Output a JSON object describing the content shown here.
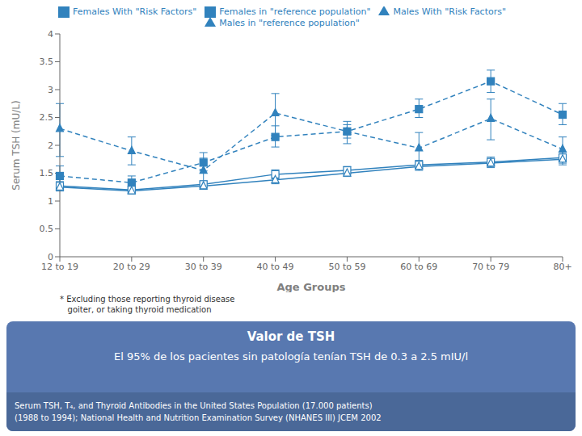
{
  "chart_data": {
    "type": "line",
    "title": "Valor de TSH",
    "subtitle": "El 95% de los pacientes sin patología tenían TSH de 0.3 a 2.5 mIU/l",
    "categories": [
      "12 to 19",
      "20 to 29",
      "30 to 39",
      "40 to 49",
      "50 to 59",
      "60 to 69",
      "70 to 79",
      "80+"
    ],
    "series": [
      {
        "name": "Females With \"Risk Factors\"",
        "values": [
          1.45,
          1.33,
          1.69,
          2.15,
          2.25,
          2.65,
          3.15,
          2.55
        ],
        "error_low": [
          0.15,
          0.1,
          0.15,
          0.18,
          0.12,
          0.15,
          0.2,
          0.18
        ],
        "error_high": [
          0.18,
          0.12,
          0.18,
          0.2,
          0.12,
          0.18,
          0.2,
          0.2
        ],
        "line_style": "dashed",
        "marker": "filled_square"
      },
      {
        "name": "Males With \"Risk Factors\"",
        "values": [
          2.3,
          1.9,
          1.55,
          2.58,
          2.25,
          1.95,
          2.48,
          1.93
        ],
        "error_low": [
          0.5,
          0.25,
          0.28,
          0.4,
          0.22,
          0.28,
          0.38,
          0.22
        ],
        "error_high": [
          0.45,
          0.25,
          0.22,
          0.35,
          0.18,
          0.28,
          0.35,
          0.22
        ],
        "line_style": "dashed",
        "marker": "filled_triangle"
      },
      {
        "name": "Females in \"reference population\"",
        "values": [
          1.27,
          1.2,
          1.3,
          1.48,
          1.55,
          1.65,
          1.7,
          1.78
        ],
        "error_low": [
          0.08,
          0.06,
          0.06,
          0.08,
          0.07,
          0.07,
          0.08,
          0.1
        ],
        "error_high": [
          0.08,
          0.06,
          0.06,
          0.08,
          0.07,
          0.08,
          0.09,
          0.1
        ],
        "line_style": "solid",
        "marker": "open_square"
      },
      {
        "name": "Males in \"reference population\"",
        "values": [
          1.25,
          1.18,
          1.27,
          1.38,
          1.5,
          1.62,
          1.68,
          1.75
        ],
        "error_low": [
          0.07,
          0.05,
          0.06,
          0.07,
          0.06,
          0.07,
          0.08,
          0.1
        ],
        "error_high": [
          0.07,
          0.05,
          0.06,
          0.07,
          0.06,
          0.07,
          0.08,
          0.1
        ],
        "line_style": "solid",
        "marker": "open_triangle"
      }
    ],
    "ylabel": "Serum TSH (mU/L)",
    "xlabel": "Age Groups",
    "annotations": [
      "* Excluding those reporting thyroid disease\n   goiter, or taking thyroid medication",
      "Serum TSH, T₄, and Thyroid Antibodies in the United States Population (17.000 patients)\n(1988 to 1994); National Health and Nutrition Examination Survey (NHANES III) JCEM 2002"
    ],
    "ylim": [
      0,
      4
    ],
    "yticks": [
      0,
      0.5,
      1,
      1.5,
      2,
      2.5,
      3,
      3.5,
      4
    ],
    "legend": "top",
    "grid": false
  }
}
